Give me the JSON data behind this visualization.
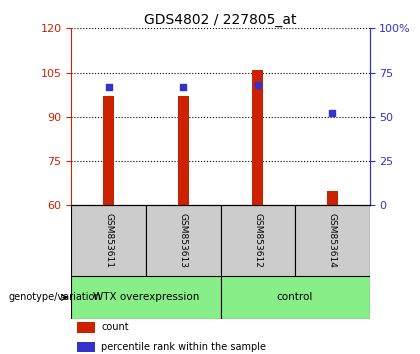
{
  "title": "GDS4802 / 227805_at",
  "samples": [
    "GSM853611",
    "GSM853613",
    "GSM853612",
    "GSM853614"
  ],
  "bar_bottom": 60,
  "bar_tops": [
    97,
    97,
    106,
    65
  ],
  "percentile_values": [
    67,
    67,
    68,
    52
  ],
  "ylim_left": [
    60,
    120
  ],
  "ylim_right": [
    0,
    100
  ],
  "yticks_left": [
    60,
    75,
    90,
    105,
    120
  ],
  "yticks_right": [
    0,
    25,
    50,
    75,
    100
  ],
  "ytick_labels_right": [
    "0",
    "25",
    "50",
    "75",
    "100%"
  ],
  "bar_color": "#cc2200",
  "percentile_color": "#3333cc",
  "groups": [
    {
      "label": "WTX overexpression",
      "indices": [
        0,
        1
      ],
      "color": "#88ee88"
    },
    {
      "label": "control",
      "indices": [
        2,
        3
      ],
      "color": "#88ee88"
    }
  ],
  "sample_box_color": "#cccccc",
  "legend_items": [
    {
      "label": "count",
      "color": "#cc2200"
    },
    {
      "label": "percentile rank within the sample",
      "color": "#3333cc"
    }
  ],
  "genotype_label": "genotype/variation",
  "title_fontsize": 10,
  "tick_fontsize": 8,
  "bar_width": 0.15
}
